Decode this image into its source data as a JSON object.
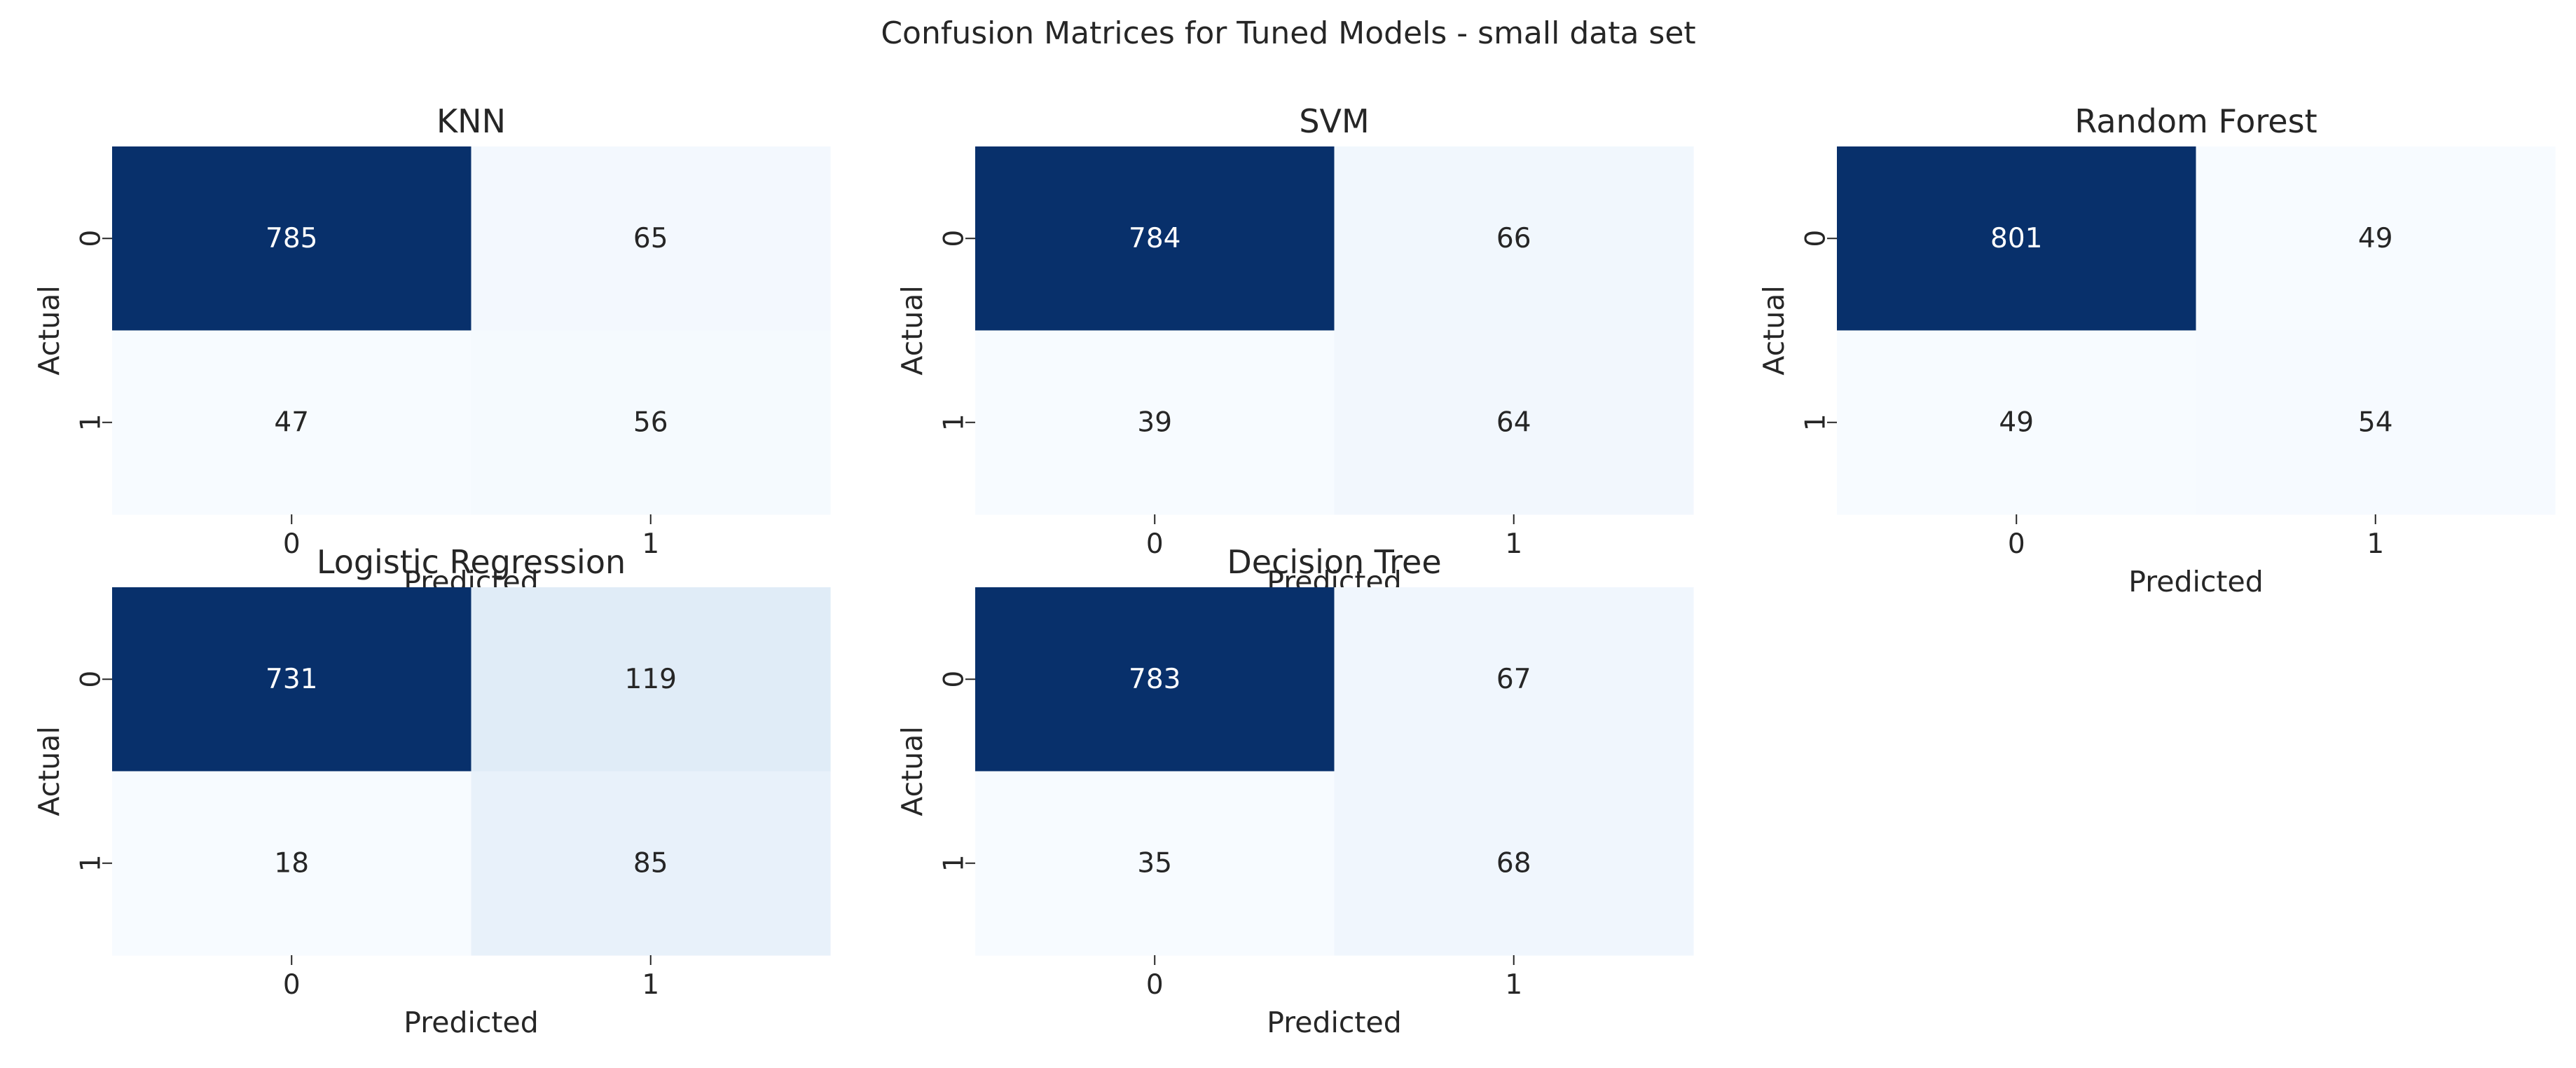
{
  "figure": {
    "title": "Confusion Matrices for Tuned Models - small data set"
  },
  "colors": {
    "colormap": "Blues",
    "low": "#f7fbff",
    "mid": "#c6dbef",
    "high": "#08306b",
    "text_on_dark": "#ffffff",
    "text_on_light": "#262626"
  },
  "chart_data": [
    {
      "type": "heatmap",
      "title": "KNN",
      "xlabel": "Predicted",
      "ylabel": "Actual",
      "x_ticklabels": [
        "0",
        "1"
      ],
      "y_ticklabels": [
        "0",
        "1"
      ],
      "matrix": [
        [
          785,
          65
        ],
        [
          47,
          56
        ]
      ],
      "colorbar": false
    },
    {
      "type": "heatmap",
      "title": "SVM",
      "xlabel": "Predicted",
      "ylabel": "Actual",
      "x_ticklabels": [
        "0",
        "1"
      ],
      "y_ticklabels": [
        "0",
        "1"
      ],
      "matrix": [
        [
          784,
          66
        ],
        [
          39,
          64
        ]
      ],
      "colorbar": false
    },
    {
      "type": "heatmap",
      "title": "Random Forest",
      "xlabel": "Predicted",
      "ylabel": "Actual",
      "x_ticklabels": [
        "0",
        "1"
      ],
      "y_ticklabels": [
        "0",
        "1"
      ],
      "matrix": [
        [
          801,
          49
        ],
        [
          49,
          54
        ]
      ],
      "colorbar": false
    },
    {
      "type": "heatmap",
      "title": "Logistic Regression",
      "xlabel": "Predicted",
      "ylabel": "Actual",
      "x_ticklabels": [
        "0",
        "1"
      ],
      "y_ticklabels": [
        "0",
        "1"
      ],
      "matrix": [
        [
          731,
          119
        ],
        [
          18,
          85
        ]
      ],
      "colorbar": false
    },
    {
      "type": "heatmap",
      "title": "Decision Tree",
      "xlabel": "Predicted",
      "ylabel": "Actual",
      "x_ticklabels": [
        "0",
        "1"
      ],
      "y_ticklabels": [
        "0",
        "1"
      ],
      "matrix": [
        [
          783,
          67
        ],
        [
          35,
          68
        ]
      ],
      "colorbar": false
    }
  ]
}
